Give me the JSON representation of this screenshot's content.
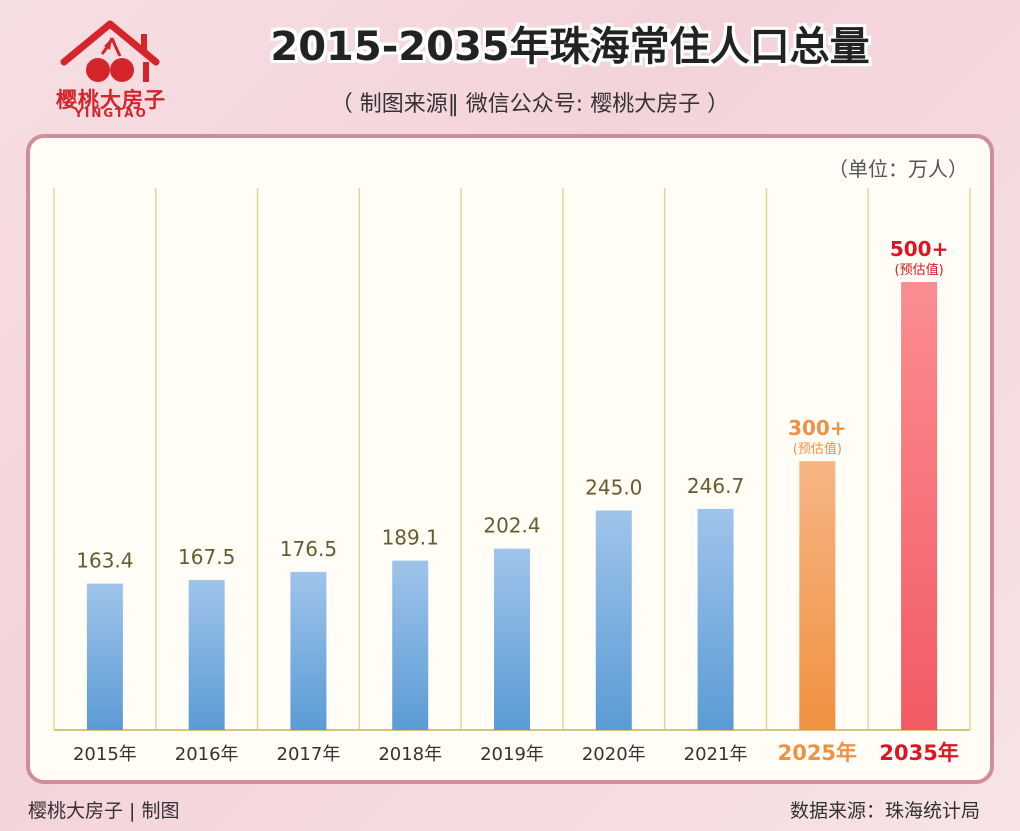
{
  "brand": {
    "name": "樱桃大房子",
    "sub": "YINGTAO"
  },
  "header": {
    "title": "2015-2035年珠海常住人口总量",
    "subtitle": "（ 制图来源‖ 微信公众号: 樱桃大房子 ）"
  },
  "footer": {
    "left": "樱桃大房子 | 制图",
    "right": "数据来源：珠海统计局"
  },
  "colors": {
    "actual": "#5b9bd5",
    "est2025": "#f0913f",
    "est2035": "#f25a63"
  },
  "chart_data": {
    "type": "bar",
    "title": "2015-2035年珠海常住人口总量",
    "unit": "（单位：万人）",
    "categories": [
      "2015年",
      "2016年",
      "2017年",
      "2018年",
      "2019年",
      "2020年",
      "2021年",
      "2025年",
      "2035年"
    ],
    "values": [
      163.4,
      167.5,
      176.5,
      189.1,
      202.4,
      245.0,
      246.7,
      300,
      500
    ],
    "labels": [
      "163.4",
      "167.5",
      "176.5",
      "189.1",
      "202.4",
      "245.0",
      "246.7",
      "300+",
      "500+"
    ],
    "notes": [
      "",
      "",
      "",
      "",
      "",
      "",
      "",
      "(预估值)",
      "(预估值)"
    ],
    "estimated": [
      false,
      false,
      false,
      false,
      false,
      false,
      false,
      true,
      true
    ],
    "ylim": [
      0,
      530
    ],
    "grid": "vertical"
  }
}
